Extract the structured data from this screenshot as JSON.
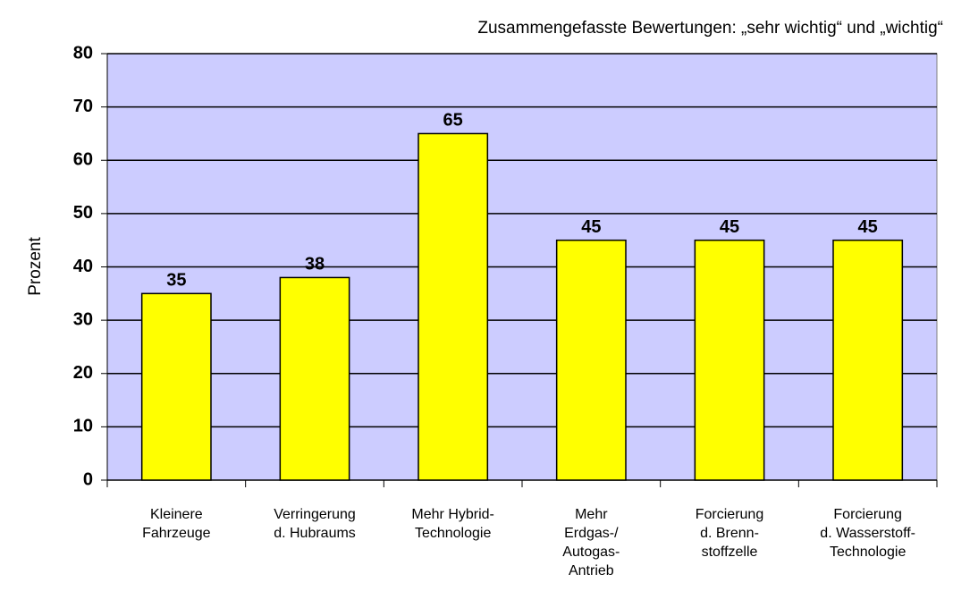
{
  "chart_data": {
    "type": "bar",
    "title": "Zusammengefasste Bewertungen: „sehr wichtig“ und „wichtig“",
    "ylabel": "Prozent",
    "categories": [
      "Kleinere\nFahrzeuge",
      "Verringerung\nd. Hubraums",
      "Mehr Hybrid-\nTechnologie",
      "Mehr\nErdgas-/\nAutogas-\nAntrieb",
      "Forcierung\nd. Brenn-\nstoffzelle",
      "Forcierung\nd. Wasserstoff-\nTechnologie"
    ],
    "values": [
      35,
      38,
      65,
      45,
      45,
      45
    ],
    "color": "#ffff00",
    "background": "#ccccff",
    "ylim": [
      0,
      80
    ],
    "yticks": [
      0,
      10,
      20,
      30,
      40,
      50,
      60,
      70,
      80
    ],
    "grid": true
  }
}
